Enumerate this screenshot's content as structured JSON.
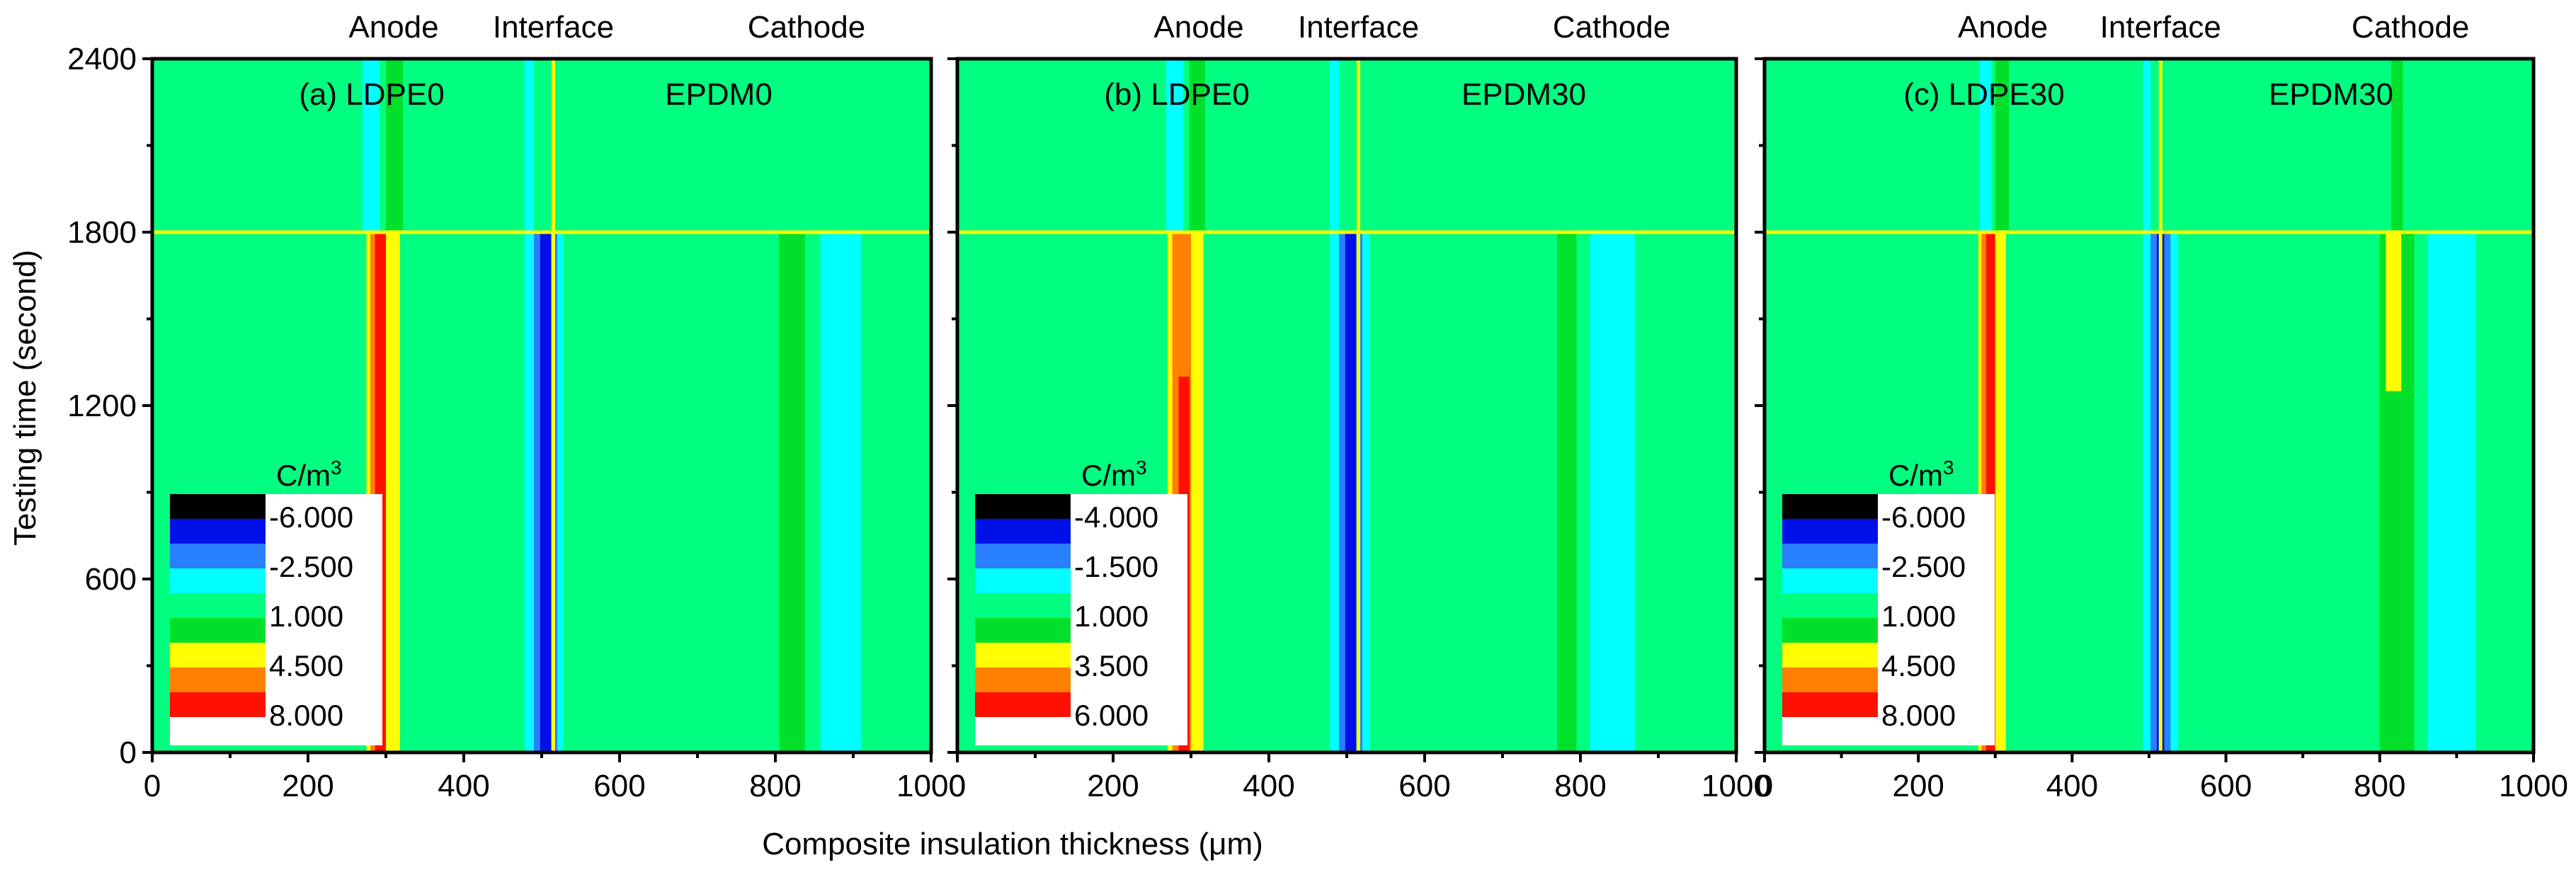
{
  "figure": {
    "xlabel": "Composite insulation thickness (μm)",
    "ylabel": "Testing time (second)"
  },
  "chart_data": [
    {
      "type": "heatmap",
      "title": "(a) LDPE0",
      "second_layer": "EPDM0",
      "top_labels": [
        "Anode",
        "Interface",
        "Cathode"
      ],
      "xlim": [
        0,
        1000
      ],
      "ylim": [
        0,
        2400
      ],
      "xticks": [
        0,
        200,
        400,
        600,
        800,
        1000
      ],
      "yticks": [
        0,
        600,
        1200,
        1800,
        2400
      ],
      "interface_x": 515,
      "crossline_y": 1800,
      "legend_title": "C/m",
      "legend_title_sup": "3",
      "legend_labels": [
        "-6.000",
        "-2.500",
        "1.000",
        "4.500",
        "8.000"
      ],
      "colors": {
        "background": "#00FF80",
        "black": "#000000",
        "blue": "#0010E8",
        "midblue": "#2A7FFF",
        "cyan": "#00FFFF",
        "green": "#00E02A",
        "yellow": "#FFFF00",
        "orange": "#FF8000",
        "red": "#FF1000",
        "white": "#FFFFFF",
        "line": "#FFFF00"
      },
      "bands": [
        {
          "x1": 275,
          "x2": 292,
          "y1": 0,
          "y2": 1800,
          "color": "yellow"
        },
        {
          "x1": 280,
          "x2": 307,
          "y1": 0,
          "y2": 1800,
          "color": "orange"
        },
        {
          "x1": 286,
          "x2": 302,
          "y1": 0,
          "y2": 1800,
          "color": "red"
        },
        {
          "x1": 300,
          "x2": 318,
          "y1": 0,
          "y2": 1800,
          "color": "yellow"
        },
        {
          "x1": 270,
          "x2": 292,
          "y1": 1800,
          "y2": 2400,
          "color": "cyan"
        },
        {
          "x1": 300,
          "x2": 322,
          "y1": 1800,
          "y2": 2400,
          "color": "green"
        },
        {
          "x1": 478,
          "x2": 490,
          "y1": 0,
          "y2": 2400,
          "color": "cyan"
        },
        {
          "x1": 490,
          "x2": 500,
          "y1": 0,
          "y2": 1800,
          "color": "midblue"
        },
        {
          "x1": 498,
          "x2": 512,
          "y1": 0,
          "y2": 1800,
          "color": "blue"
        },
        {
          "x1": 512,
          "x2": 520,
          "y1": 0,
          "y2": 1800,
          "color": "midblue"
        },
        {
          "x1": 520,
          "x2": 528,
          "y1": 0,
          "y2": 1800,
          "color": "cyan"
        },
        {
          "x1": 805,
          "x2": 838,
          "y1": 0,
          "y2": 1800,
          "color": "green"
        },
        {
          "x1": 858,
          "x2": 910,
          "y1": 0,
          "y2": 1800,
          "color": "cyan"
        }
      ]
    },
    {
      "type": "heatmap",
      "title": "(b) LDPE0",
      "second_layer": "EPDM30",
      "top_labels": [
        "Anode",
        "Interface",
        "Cathode"
      ],
      "xlim": [
        0,
        1000
      ],
      "ylim": [
        0,
        2400
      ],
      "xticks": [
        0,
        200,
        400,
        600,
        800,
        1000
      ],
      "yticks": [
        0,
        600,
        1200,
        1800,
        2400
      ],
      "interface_x": 515,
      "crossline_y": 1800,
      "legend_title": "C/m",
      "legend_title_sup": "3",
      "legend_labels": [
        "-4.000",
        "-1.500",
        "1.000",
        "3.500",
        "6.000"
      ],
      "colors": {
        "background": "#00FF80",
        "black": "#000000",
        "blue": "#0010E8",
        "midblue": "#2A7FFF",
        "cyan": "#00FFFF",
        "green": "#00E02A",
        "yellow": "#FFFF00",
        "orange": "#FF8000",
        "red": "#FF1000",
        "white": "#FFFFFF",
        "line": "#FFFF00"
      },
      "bands": [
        {
          "x1": 270,
          "x2": 290,
          "y1": 0,
          "y2": 1800,
          "color": "yellow"
        },
        {
          "x1": 276,
          "x2": 305,
          "y1": 0,
          "y2": 1800,
          "color": "orange"
        },
        {
          "x1": 284,
          "x2": 298,
          "y1": 0,
          "y2": 1300,
          "color": "red"
        },
        {
          "x1": 300,
          "x2": 316,
          "y1": 0,
          "y2": 1800,
          "color": "yellow"
        },
        {
          "x1": 268,
          "x2": 290,
          "y1": 1800,
          "y2": 2400,
          "color": "cyan"
        },
        {
          "x1": 298,
          "x2": 318,
          "y1": 1800,
          "y2": 2400,
          "color": "green"
        },
        {
          "x1": 478,
          "x2": 490,
          "y1": 0,
          "y2": 2400,
          "color": "cyan"
        },
        {
          "x1": 490,
          "x2": 500,
          "y1": 0,
          "y2": 1800,
          "color": "midblue"
        },
        {
          "x1": 498,
          "x2": 512,
          "y1": 0,
          "y2": 1800,
          "color": "blue"
        },
        {
          "x1": 512,
          "x2": 520,
          "y1": 0,
          "y2": 1800,
          "color": "midblue"
        },
        {
          "x1": 520,
          "x2": 530,
          "y1": 0,
          "y2": 1800,
          "color": "cyan"
        },
        {
          "x1": 770,
          "x2": 795,
          "y1": 0,
          "y2": 1800,
          "color": "green"
        },
        {
          "x1": 812,
          "x2": 870,
          "y1": 0,
          "y2": 1800,
          "color": "cyan"
        }
      ]
    },
    {
      "type": "heatmap",
      "title": "(c) LDPE30",
      "second_layer": "EPDM30",
      "top_labels": [
        "Anode",
        "Interface",
        "Cathode"
      ],
      "xlim": [
        0,
        1000
      ],
      "ylim": [
        0,
        2400
      ],
      "xticks": [
        0,
        200,
        400,
        600,
        800,
        1000
      ],
      "yticks": [
        0,
        600,
        1200,
        1800,
        2400
      ],
      "interface_x": 515,
      "crossline_y": 1800,
      "legend_title": "C/m",
      "legend_title_sup": "3",
      "legend_labels": [
        "-6.000",
        "-2.500",
        "1.000",
        "4.500",
        "8.000"
      ],
      "colors": {
        "background": "#00FF80",
        "black": "#000000",
        "blue": "#0010E8",
        "midblue": "#2A7FFF",
        "cyan": "#00FFFF",
        "green": "#00E02A",
        "yellow": "#FFFF00",
        "orange": "#FF8000",
        "red": "#FF1000",
        "white": "#FFFFFF",
        "line": "#FFFF00"
      },
      "bands": [
        {
          "x1": 278,
          "x2": 292,
          "y1": 0,
          "y2": 1800,
          "color": "yellow"
        },
        {
          "x1": 282,
          "x2": 306,
          "y1": 0,
          "y2": 1800,
          "color": "orange"
        },
        {
          "x1": 288,
          "x2": 300,
          "y1": 0,
          "y2": 1800,
          "color": "red"
        },
        {
          "x1": 300,
          "x2": 314,
          "y1": 0,
          "y2": 1800,
          "color": "yellow"
        },
        {
          "x1": 280,
          "x2": 295,
          "y1": 1800,
          "y2": 2400,
          "color": "cyan"
        },
        {
          "x1": 300,
          "x2": 318,
          "y1": 1800,
          "y2": 2400,
          "color": "green"
        },
        {
          "x1": 492,
          "x2": 502,
          "y1": 0,
          "y2": 2400,
          "color": "cyan"
        },
        {
          "x1": 502,
          "x2": 510,
          "y1": 0,
          "y2": 1800,
          "color": "midblue"
        },
        {
          "x1": 510,
          "x2": 520,
          "y1": 0,
          "y2": 1800,
          "color": "blue"
        },
        {
          "x1": 520,
          "x2": 528,
          "y1": 0,
          "y2": 1800,
          "color": "midblue"
        },
        {
          "x1": 528,
          "x2": 538,
          "y1": 0,
          "y2": 1800,
          "color": "cyan"
        },
        {
          "x1": 800,
          "x2": 845,
          "y1": 0,
          "y2": 1800,
          "color": "green"
        },
        {
          "x1": 808,
          "x2": 828,
          "y1": 1250,
          "y2": 1800,
          "color": "yellow"
        },
        {
          "x1": 862,
          "x2": 925,
          "y1": 0,
          "y2": 1800,
          "color": "cyan"
        },
        {
          "x1": 815,
          "x2": 830,
          "y1": 1800,
          "y2": 2400,
          "color": "green"
        }
      ]
    }
  ]
}
